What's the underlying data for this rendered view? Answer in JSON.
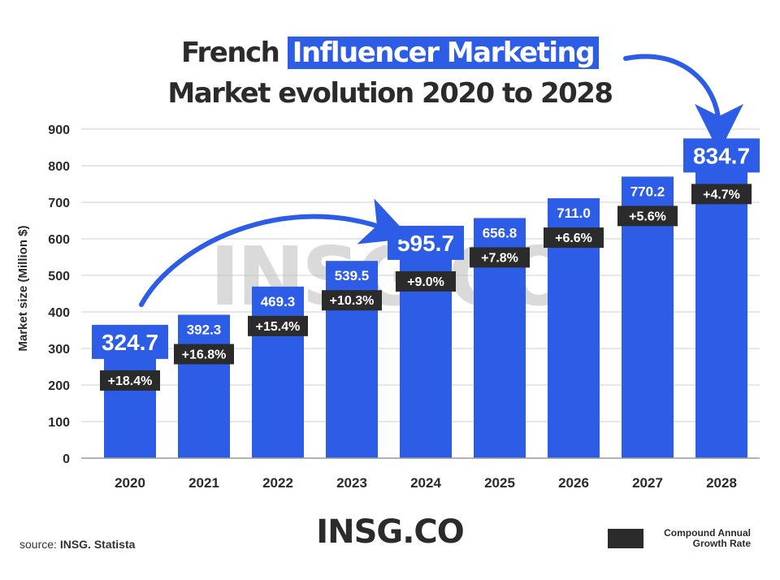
{
  "title": {
    "prefix": "French ",
    "highlight": "Influencer Marketing",
    "line2": "Market evolution 2020 to 2028"
  },
  "watermark": "INSG.CO",
  "brand": "INSG.CO",
  "source": {
    "label": "source: ",
    "value": "INSG. Statista"
  },
  "legend": {
    "label": "Compound Annual Growth Rate",
    "color": "#2b2b2b"
  },
  "colors": {
    "bar": "#2d5de6",
    "text": "#2b2b2b",
    "grid": "#cfcfcf",
    "growth_box": "#2b2b2b"
  },
  "chart_data": {
    "type": "bar",
    "ylabel": "Market size (Million $)",
    "ylim": [
      0,
      900
    ],
    "yticks": [
      0,
      100,
      200,
      300,
      400,
      500,
      600,
      700,
      800,
      900
    ],
    "grid": true,
    "categories": [
      "2020",
      "2021",
      "2022",
      "2023",
      "2024",
      "2025",
      "2026",
      "2027",
      "2028"
    ],
    "values": [
      324.7,
      392.3,
      469.3,
      539.5,
      595.7,
      656.8,
      711.0,
      770.2,
      834.7
    ],
    "value_labels": [
      "324.7",
      "392.3",
      "469.3",
      "539.5",
      "595.7",
      "656.8",
      "711.0",
      "770.2",
      "834.7"
    ],
    "growth_labels": [
      "+18.4%",
      "+16.8%",
      "+15.4%",
      "+10.3%",
      "+9.0%",
      "+7.8%",
      "+6.6%",
      "+5.6%",
      "+4.7%"
    ],
    "emphasized": [
      "2020",
      "2024",
      "2028"
    ]
  }
}
